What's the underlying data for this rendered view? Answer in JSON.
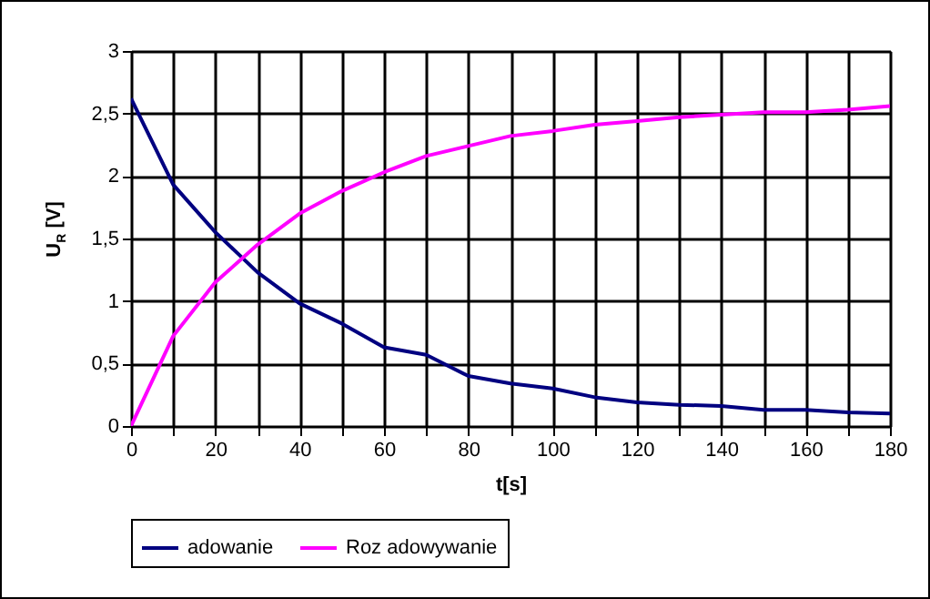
{
  "chart_data": {
    "type": "line",
    "xlabel": "t[s]",
    "ylabel": "U$_{R}$ [V]",
    "x": [
      0,
      10,
      20,
      30,
      40,
      50,
      60,
      70,
      80,
      90,
      100,
      110,
      120,
      130,
      140,
      150,
      160,
      170,
      180
    ],
    "series": [
      {
        "name": "adowanie",
        "color": "#000080",
        "values": [
          2.62,
          1.93,
          1.55,
          1.23,
          0.98,
          0.82,
          0.63,
          0.57,
          0.4,
          0.34,
          0.3,
          0.23,
          0.19,
          0.17,
          0.16,
          0.13,
          0.13,
          0.11,
          0.1
        ]
      },
      {
        "name": "Roz adowywanie",
        "color": "#ff00ff",
        "values": [
          0,
          0.72,
          1.15,
          1.45,
          1.7,
          1.88,
          2.03,
          2.16,
          2.24,
          2.32,
          2.36,
          2.41,
          2.44,
          2.47,
          2.49,
          2.51,
          2.51,
          2.53,
          2.56
        ]
      }
    ],
    "xlim": [
      0,
      180
    ],
    "xticks": [
      0,
      {
        "value": 10,
        "label": null
      },
      20,
      {
        "value": 30,
        "label": null
      },
      40,
      {
        "value": 50,
        "label": null
      },
      60,
      {
        "value": 70,
        "label": null
      },
      80,
      {
        "value": 90,
        "label": null
      },
      100,
      {
        "value": 110,
        "label": null
      },
      120,
      {
        "value": 130,
        "label": null
      },
      140,
      {
        "value": 150,
        "label": null
      },
      160,
      {
        "value": 170,
        "label": null
      },
      180
    ],
    "ylim": [
      0,
      3
    ],
    "yticks": [
      0,
      {
        "value": 0.5,
        "label": "0,5"
      },
      1,
      {
        "value": 1.5,
        "label": "1,5"
      },
      2,
      {
        "value": 2.5,
        "label": "2,5"
      },
      3
    ],
    "grid": true,
    "legend": "bottom",
    "marker": "none",
    "line_style": "solid"
  }
}
